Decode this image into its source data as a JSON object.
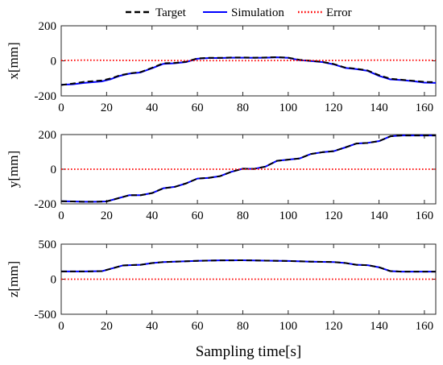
{
  "legend": {
    "placement": "top",
    "items": [
      {
        "label": "Target",
        "color": "#000000",
        "dash": "dashed"
      },
      {
        "label": "Simulation",
        "color": "#0000ff",
        "dash": "solid"
      },
      {
        "label": "Error",
        "color": "#ff0000",
        "dash": "dotted"
      }
    ]
  },
  "chart_data": [
    {
      "type": "line",
      "ylabel": "x[mm]",
      "xlabel": "",
      "xlim": [
        0,
        165
      ],
      "ylim": [
        -200,
        200
      ],
      "xticks": [
        "0",
        "20",
        "40",
        "60",
        "80",
        "100",
        "120",
        "140",
        "160"
      ],
      "yticks": [
        "-200",
        "0",
        "200"
      ],
      "grid": false,
      "series": [
        {
          "name": "Target",
          "color": "#000000",
          "dash": "dashed",
          "x": [
            0,
            5,
            10,
            18,
            22,
            26,
            30,
            35,
            40,
            45,
            50,
            55,
            60,
            65,
            70,
            75,
            80,
            85,
            90,
            95,
            100,
            105,
            110,
            115,
            120,
            125,
            130,
            135,
            140,
            145,
            150,
            155,
            160,
            165
          ],
          "y": [
            -138,
            -130,
            -120,
            -112,
            -100,
            -82,
            -72,
            -64,
            -40,
            -14,
            -12,
            -5,
            14,
            17,
            17,
            19,
            19,
            18,
            19,
            21,
            18,
            6,
            0,
            -6,
            -18,
            -38,
            -45,
            -55,
            -82,
            -102,
            -108,
            -114,
            -120,
            -122
          ]
        },
        {
          "name": "Simulation",
          "color": "#0000ff",
          "dash": "solid",
          "x": [
            0,
            5,
            10,
            18,
            22,
            26,
            30,
            35,
            40,
            45,
            50,
            55,
            60,
            65,
            70,
            75,
            80,
            85,
            90,
            95,
            100,
            105,
            110,
            115,
            120,
            125,
            130,
            135,
            140,
            145,
            150,
            155,
            160,
            165
          ],
          "y": [
            -136,
            -134,
            -126,
            -117,
            -104,
            -85,
            -73,
            -66,
            -42,
            -17,
            -14,
            -7,
            12,
            16,
            16,
            18,
            18,
            17,
            18,
            20,
            17,
            4,
            -1,
            -7,
            -20,
            -40,
            -47,
            -57,
            -86,
            -106,
            -110,
            -116,
            -124,
            -126
          ]
        },
        {
          "name": "Error",
          "color": "#ff0000",
          "dash": "dotted",
          "x": [
            0,
            10,
            20,
            40,
            60,
            80,
            100,
            120,
            140,
            165
          ],
          "y": [
            2,
            4,
            3,
            2,
            1,
            1,
            2,
            2,
            4,
            3
          ]
        }
      ]
    },
    {
      "type": "line",
      "ylabel": "y[mm]",
      "xlabel": "",
      "xlim": [
        0,
        165
      ],
      "ylim": [
        -200,
        200
      ],
      "xticks": [
        "0",
        "20",
        "40",
        "60",
        "80",
        "100",
        "120",
        "140",
        "160"
      ],
      "yticks": [
        "-200",
        "0",
        "200"
      ],
      "grid": false,
      "series": [
        {
          "name": "Target",
          "color": "#000000",
          "dash": "dashed",
          "x": [
            0,
            5,
            10,
            15,
            20,
            25,
            30,
            35,
            40,
            45,
            50,
            55,
            60,
            65,
            70,
            75,
            80,
            85,
            90,
            95,
            100,
            105,
            110,
            115,
            120,
            125,
            130,
            135,
            140,
            145,
            150,
            155,
            160,
            165
          ],
          "y": [
            -185,
            -186,
            -188,
            -188,
            -186,
            -168,
            -150,
            -150,
            -138,
            -110,
            -102,
            -82,
            -54,
            -50,
            -40,
            -15,
            3,
            2,
            15,
            48,
            55,
            62,
            88,
            98,
            104,
            125,
            148,
            152,
            162,
            190,
            195,
            195,
            195,
            195
          ]
        },
        {
          "name": "Simulation",
          "color": "#0000ff",
          "dash": "solid",
          "x": [
            0,
            5,
            10,
            15,
            20,
            25,
            30,
            35,
            40,
            45,
            50,
            55,
            60,
            65,
            70,
            75,
            80,
            85,
            90,
            95,
            100,
            105,
            110,
            115,
            120,
            125,
            130,
            135,
            140,
            145,
            150,
            155,
            160,
            165
          ],
          "y": [
            -185,
            -186,
            -188,
            -188,
            -186,
            -168,
            -150,
            -150,
            -138,
            -110,
            -102,
            -82,
            -54,
            -50,
            -40,
            -15,
            3,
            2,
            15,
            48,
            55,
            62,
            88,
            98,
            104,
            125,
            148,
            152,
            162,
            190,
            195,
            195,
            195,
            195
          ]
        },
        {
          "name": "Error",
          "color": "#ff0000",
          "dash": "dotted",
          "x": [
            0,
            165
          ],
          "y": [
            0,
            0
          ]
        }
      ]
    },
    {
      "type": "line",
      "ylabel": "z[mm]",
      "xlabel": "Sampling time[s]",
      "xlim": [
        0,
        165
      ],
      "ylim": [
        -500,
        500
      ],
      "xticks": [
        "0",
        "20",
        "40",
        "60",
        "80",
        "100",
        "120",
        "140",
        "160"
      ],
      "yticks": [
        "-500",
        "0",
        "500"
      ],
      "grid": false,
      "series": [
        {
          "name": "Target",
          "color": "#000000",
          "dash": "dashed",
          "x": [
            0,
            5,
            10,
            18,
            22,
            27,
            30,
            35,
            40,
            45,
            50,
            55,
            60,
            70,
            80,
            90,
            100,
            110,
            120,
            125,
            130,
            135,
            140,
            145,
            150,
            155,
            160,
            165
          ],
          "y": [
            110,
            110,
            110,
            115,
            150,
            195,
            200,
            205,
            230,
            245,
            250,
            255,
            262,
            268,
            270,
            265,
            260,
            250,
            245,
            232,
            205,
            200,
            170,
            115,
            108,
            108,
            108,
            108
          ]
        },
        {
          "name": "Simulation",
          "color": "#0000ff",
          "dash": "solid",
          "x": [
            0,
            5,
            10,
            18,
            22,
            27,
            30,
            35,
            40,
            45,
            50,
            55,
            60,
            70,
            80,
            90,
            100,
            110,
            120,
            125,
            130,
            135,
            140,
            145,
            150,
            155,
            160,
            165
          ],
          "y": [
            110,
            110,
            110,
            115,
            150,
            195,
            200,
            205,
            230,
            245,
            250,
            255,
            262,
            268,
            270,
            265,
            260,
            250,
            245,
            232,
            205,
            200,
            170,
            115,
            108,
            108,
            108,
            108
          ]
        },
        {
          "name": "Error",
          "color": "#ff0000",
          "dash": "dotted",
          "x": [
            0,
            165
          ],
          "y": [
            0,
            0
          ]
        }
      ]
    }
  ]
}
